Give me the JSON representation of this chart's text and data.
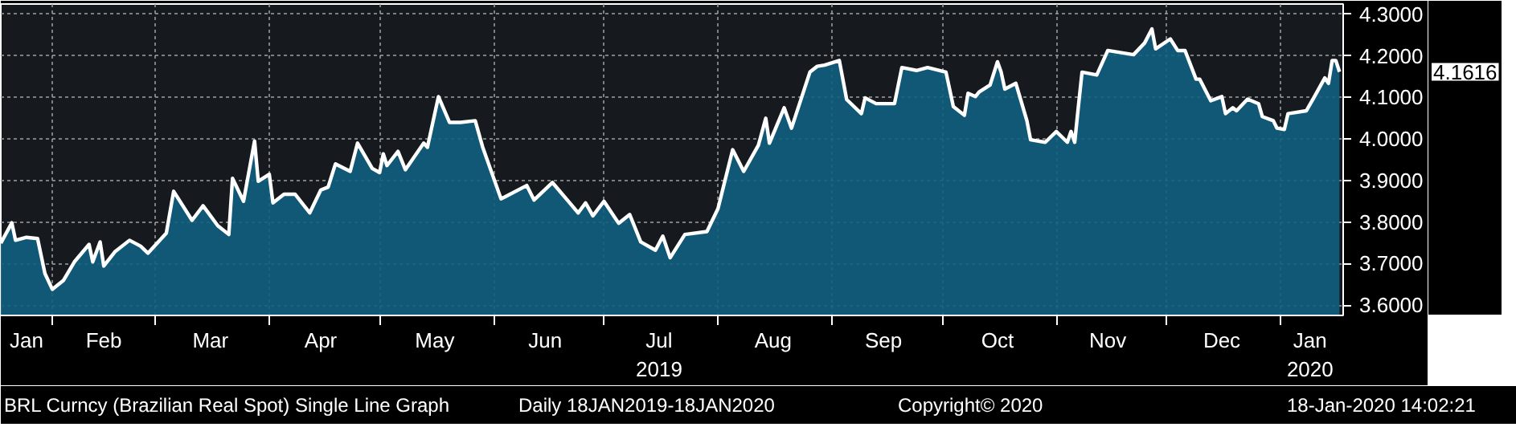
{
  "chart_data": {
    "type": "area",
    "title": "BRL Curncy (Brazilian Real Spot) Single Line Graph",
    "subtitle": "Daily 18JAN2019-18JAN2020",
    "annotations": [
      "Copyright© 2020",
      "18-Jan-2020 14:02:21",
      "4.1616"
    ],
    "x": [
      "2019-01-18",
      "2019-01-21",
      "2019-01-22",
      "2019-01-25",
      "2019-01-28",
      "2019-01-30",
      "2019-02-01",
      "2019-02-04",
      "2019-02-07",
      "2019-02-11",
      "2019-02-12",
      "2019-02-14",
      "2019-02-15",
      "2019-02-18",
      "2019-02-22",
      "2019-02-25",
      "2019-02-27",
      "2019-03-04",
      "2019-03-06",
      "2019-03-11",
      "2019-03-14",
      "2019-03-18",
      "2019-03-21",
      "2019-03-22",
      "2019-03-25",
      "2019-03-28",
      "2019-03-29",
      "2019-04-01",
      "2019-04-02",
      "2019-04-05",
      "2019-04-08",
      "2019-04-12",
      "2019-04-15",
      "2019-04-17",
      "2019-04-19",
      "2019-04-23",
      "2019-04-25",
      "2019-04-29",
      "2019-05-01",
      "2019-05-02",
      "2019-05-03",
      "2019-05-06",
      "2019-05-08",
      "2019-05-13",
      "2019-05-14",
      "2019-05-17",
      "2019-05-20",
      "2019-05-23",
      "2019-05-27",
      "2019-05-29",
      "2019-06-03",
      "2019-06-04",
      "2019-06-10",
      "2019-06-12",
      "2019-06-17",
      "2019-06-24",
      "2019-06-26",
      "2019-06-28",
      "2019-07-01",
      "2019-07-05",
      "2019-07-08",
      "2019-07-11",
      "2019-07-15",
      "2019-07-17",
      "2019-07-19",
      "2019-07-23",
      "2019-07-29",
      "2019-08-01",
      "2019-08-05",
      "2019-08-08",
      "2019-08-12",
      "2019-08-14",
      "2019-08-15",
      "2019-08-19",
      "2019-08-21",
      "2019-08-26",
      "2019-08-28",
      "2019-08-30",
      "2019-09-03",
      "2019-09-05",
      "2019-09-09",
      "2019-09-10",
      "2019-09-13",
      "2019-09-18",
      "2019-09-20",
      "2019-09-24",
      "2019-09-27",
      "2019-10-02",
      "2019-10-04",
      "2019-10-07",
      "2019-10-08",
      "2019-10-10",
      "2019-10-11",
      "2019-10-14",
      "2019-10-16",
      "2019-10-17",
      "2019-10-18",
      "2019-10-21",
      "2019-10-24",
      "2019-10-25",
      "2019-10-29",
      "2019-11-01",
      "2019-11-04",
      "2019-11-05",
      "2019-11-06",
      "2019-11-07",
      "2019-11-08",
      "2019-11-12",
      "2019-11-15",
      "2019-11-20",
      "2019-11-22",
      "2019-11-25",
      "2019-11-27",
      "2019-11-28",
      "2019-12-02",
      "2019-12-04",
      "2019-12-06",
      "2019-12-09",
      "2019-12-10",
      "2019-12-13",
      "2019-12-16",
      "2019-12-17",
      "2019-12-19",
      "2019-12-20",
      "2019-12-23",
      "2019-12-26",
      "2019-12-27",
      "2019-12-30",
      "2019-12-31",
      "2020-01-02",
      "2020-01-03",
      "2020-01-08",
      "2020-01-10",
      "2020-01-13",
      "2020-01-14",
      "2020-01-15",
      "2020-01-16",
      "2020-01-17"
    ],
    "series": [
      {
        "color": "#0f5f7e",
        "values": [
          3.749,
          3.798,
          3.756,
          3.763,
          3.76,
          3.676,
          3.638,
          3.659,
          3.704,
          3.746,
          3.704,
          3.752,
          3.694,
          3.728,
          3.756,
          3.742,
          3.725,
          3.773,
          3.874,
          3.804,
          3.839,
          3.791,
          3.77,
          3.905,
          3.85,
          3.995,
          3.898,
          3.915,
          3.846,
          3.867,
          3.867,
          3.822,
          3.877,
          3.884,
          3.94,
          3.922,
          3.99,
          3.929,
          3.919,
          3.964,
          3.936,
          3.97,
          3.926,
          3.99,
          3.98,
          4.102,
          4.04,
          4.04,
          4.044,
          3.981,
          3.856,
          3.86,
          3.888,
          3.853,
          3.895,
          3.822,
          3.846,
          3.815,
          3.85,
          3.797,
          3.818,
          3.752,
          3.732,
          3.766,
          3.714,
          3.77,
          3.777,
          3.832,
          3.974,
          3.922,
          3.985,
          4.05,
          3.99,
          4.075,
          4.026,
          4.161,
          4.175,
          4.178,
          4.189,
          4.095,
          4.061,
          4.099,
          4.085,
          4.085,
          4.172,
          4.165,
          4.172,
          4.161,
          4.078,
          4.057,
          4.11,
          4.102,
          4.113,
          4.13,
          4.186,
          4.161,
          4.12,
          4.134,
          4.044,
          3.998,
          3.992,
          4.018,
          3.992,
          4.018,
          3.992,
          4.078,
          4.161,
          4.154,
          4.213,
          4.206,
          4.203,
          4.231,
          4.265,
          4.217,
          4.241,
          4.213,
          4.213,
          4.144,
          4.144,
          4.092,
          4.102,
          4.061,
          4.075,
          4.068,
          4.096,
          4.085,
          4.054,
          4.044,
          4.026,
          4.023,
          4.061,
          4.068,
          4.099,
          4.147,
          4.134,
          4.189,
          4.189,
          4.1616
        ]
      }
    ],
    "xlim": [
      "2019-01-18",
      "2020-01-18"
    ],
    "xticks": [
      {
        "value": "2019-01-25",
        "label": "Jan"
      },
      {
        "value": "2019-02-15",
        "label": "Feb"
      },
      {
        "value": "2019-03-16",
        "label": "Mar"
      },
      {
        "value": "2019-04-15",
        "label": "Apr"
      },
      {
        "value": "2019-05-16",
        "label": "May"
      },
      {
        "value": "2019-06-15",
        "label": "Jun"
      },
      {
        "value": "2019-07-16",
        "label": "Jul\n2019"
      },
      {
        "value": "2019-08-16",
        "label": "Aug"
      },
      {
        "value": "2019-09-15",
        "label": "Sep"
      },
      {
        "value": "2019-10-16",
        "label": "Oct"
      },
      {
        "value": "2019-11-15",
        "label": "Nov"
      },
      {
        "value": "2019-12-16",
        "label": "Dec"
      },
      {
        "value": "2020-01-09",
        "label": "Jan\n2020"
      },
      {
        "value": "2019-02-01",
        "label": null
      },
      {
        "value": "2019-03-01",
        "label": null
      },
      {
        "value": "2019-04-01",
        "label": null
      },
      {
        "value": "2019-05-01",
        "label": null
      },
      {
        "value": "2019-06-01",
        "label": null
      },
      {
        "value": "2019-07-01",
        "label": null
      },
      {
        "value": "2019-08-01",
        "label": null
      },
      {
        "value": "2019-09-01",
        "label": null
      },
      {
        "value": "2019-10-01",
        "label": null
      },
      {
        "value": "2019-11-01",
        "label": null
      },
      {
        "value": "2019-12-01",
        "label": null
      },
      {
        "value": "2020-01-01",
        "label": null
      }
    ],
    "ylim": [
      3.575,
      4.325
    ],
    "yticks": [
      {
        "value": 3.6,
        "label": "3.6000"
      },
      {
        "value": 3.7,
        "label": "3.7000"
      },
      {
        "value": 3.8,
        "label": "3.8000"
      },
      {
        "value": 3.9,
        "label": "3.9000"
      },
      {
        "value": 4.0,
        "label": "4.0000"
      },
      {
        "value": 4.1,
        "label": "4.1000"
      },
      {
        "value": 4.2,
        "label": "4.2000"
      },
      {
        "value": 4.3,
        "label": "4.3000"
      }
    ],
    "grid": true
  }
}
